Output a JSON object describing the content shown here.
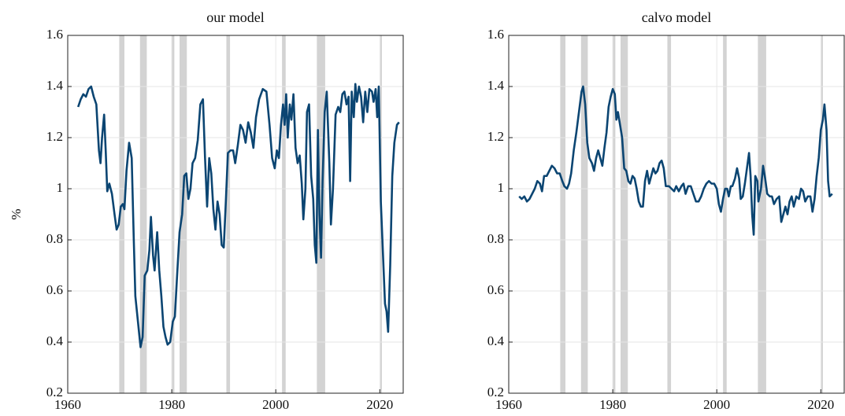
{
  "chart_data": [
    {
      "type": "line",
      "title": "our model",
      "ylabel": "%",
      "color": "#0b4572",
      "grid": true,
      "shade_color": "#d3d3d3",
      "xlim": [
        1960,
        2024.5
      ],
      "xticks": [
        1960,
        1980,
        2000,
        2020
      ],
      "ylim": [
        0.2,
        1.6
      ],
      "yticks": [
        0.2,
        0.4,
        0.6,
        0.8,
        1,
        1.2,
        1.4,
        1.6
      ],
      "shaded": [
        [
          1969.9,
          1970.9
        ],
        [
          1973.9,
          1975.2
        ],
        [
          1980.0,
          1980.5
        ],
        [
          1981.5,
          1982.9
        ],
        [
          1990.5,
          1991.2
        ],
        [
          2001.2,
          2001.9
        ],
        [
          2007.9,
          2009.5
        ],
        [
          2020.1,
          2020.4
        ]
      ],
      "x": [
        1962,
        1962.5,
        1963,
        1963.5,
        1964,
        1964.5,
        1965,
        1965.5,
        1966,
        1966.3,
        1966.6,
        1967,
        1967.3,
        1967.6,
        1968,
        1968.5,
        1969,
        1969.4,
        1969.8,
        1970.2,
        1970.6,
        1970.9,
        1971.3,
        1971.8,
        1972.3,
        1972.7,
        1973,
        1973.5,
        1974,
        1974.4,
        1974.8,
        1975.3,
        1975.7,
        1976,
        1976.4,
        1976.7,
        1977.2,
        1977.6,
        1978,
        1978.4,
        1978.8,
        1979.2,
        1979.7,
        1980.2,
        1980.6,
        1981,
        1981.5,
        1982,
        1982.4,
        1982.8,
        1983.2,
        1983.6,
        1984,
        1984.5,
        1985,
        1985.5,
        1986,
        1986.4,
        1986.8,
        1987.2,
        1987.6,
        1988,
        1988.4,
        1988.8,
        1989.2,
        1989.6,
        1990,
        1990.4,
        1990.8,
        1991.3,
        1991.8,
        1992.2,
        1992.7,
        1993.2,
        1993.7,
        1994.2,
        1994.7,
        1995.2,
        1995.7,
        1996.2,
        1996.8,
        1997.5,
        1998.2,
        1998.8,
        1999.3,
        1999.8,
        2000.2,
        2000.6,
        2001,
        2001.4,
        2001.7,
        2002,
        2002.3,
        2002.7,
        2003,
        2003.4,
        2003.8,
        2004.2,
        2004.6,
        2005,
        2005.3,
        2005.7,
        2006,
        2006.4,
        2006.8,
        2007.2,
        2007.5,
        2007.8,
        2008.1,
        2008.4,
        2008.7,
        2009,
        2009.4,
        2009.8,
        2010.3,
        2010.6,
        2011,
        2011.5,
        2012,
        2012.4,
        2012.8,
        2013.2,
        2013.6,
        2014,
        2014.3,
        2014.6,
        2015,
        2015.3,
        2015.6,
        2016,
        2016.4,
        2016.8,
        2017.2,
        2017.6,
        2018,
        2018.5,
        2018.8,
        2019.2,
        2019.5,
        2019.8,
        2020.2,
        2020.6,
        2021,
        2021.3,
        2021.6,
        2022,
        2022.4,
        2022.8,
        2023.3,
        2023.7
      ],
      "values": [
        1.32,
        1.35,
        1.37,
        1.36,
        1.39,
        1.4,
        1.36,
        1.33,
        1.15,
        1.1,
        1.2,
        1.29,
        1.15,
        0.99,
        1.02,
        0.98,
        0.9,
        0.84,
        0.86,
        0.93,
        0.94,
        0.92,
        1.07,
        1.18,
        1.12,
        0.8,
        0.58,
        0.48,
        0.38,
        0.42,
        0.66,
        0.68,
        0.76,
        0.89,
        0.74,
        0.68,
        0.83,
        0.68,
        0.58,
        0.46,
        0.42,
        0.39,
        0.4,
        0.48,
        0.5,
        0.65,
        0.83,
        0.9,
        1.05,
        1.06,
        0.96,
        1.0,
        1.1,
        1.12,
        1.19,
        1.33,
        1.35,
        1.12,
        0.93,
        1.12,
        1.06,
        0.92,
        0.84,
        0.95,
        0.9,
        0.78,
        0.77,
        0.95,
        1.14,
        1.15,
        1.15,
        1.1,
        1.17,
        1.25,
        1.23,
        1.18,
        1.26,
        1.22,
        1.16,
        1.28,
        1.35,
        1.39,
        1.38,
        1.25,
        1.12,
        1.08,
        1.15,
        1.12,
        1.25,
        1.33,
        1.25,
        1.37,
        1.2,
        1.33,
        1.27,
        1.37,
        1.16,
        1.1,
        1.13,
        1.02,
        0.88,
        1.0,
        1.3,
        1.33,
        1.05,
        0.96,
        0.78,
        0.71,
        1.23,
        0.9,
        0.73,
        1.03,
        1.3,
        1.38,
        1.1,
        0.86,
        1.0,
        1.29,
        1.32,
        1.3,
        1.37,
        1.38,
        1.33,
        1.36,
        1.03,
        1.38,
        1.28,
        1.41,
        1.34,
        1.4,
        1.36,
        1.26,
        1.38,
        1.3,
        1.39,
        1.38,
        1.34,
        1.39,
        1.28,
        1.4,
        0.95,
        0.75,
        0.55,
        0.52,
        0.44,
        0.7,
        1.05,
        1.18,
        1.25,
        1.26
      ]
    },
    {
      "type": "line",
      "title": "calvo model",
      "color": "#0b4572",
      "grid": true,
      "shade_color": "#d3d3d3",
      "xlim": [
        1960,
        2024.5
      ],
      "xticks": [
        1960,
        1980,
        2000,
        2020
      ],
      "ylim": [
        0.2,
        1.6
      ],
      "yticks": [
        0.2,
        0.4,
        0.6,
        0.8,
        1,
        1.2,
        1.4,
        1.6
      ],
      "shaded": [
        [
          1969.9,
          1970.9
        ],
        [
          1973.9,
          1975.2
        ],
        [
          1980.0,
          1980.5
        ],
        [
          1981.5,
          1982.9
        ],
        [
          1990.5,
          1991.2
        ],
        [
          2001.2,
          2001.9
        ],
        [
          2007.9,
          2009.5
        ],
        [
          2020.1,
          2020.4
        ]
      ],
      "x": [
        1962,
        1962.5,
        1963,
        1963.5,
        1964,
        1964.5,
        1965,
        1965.5,
        1966,
        1966.4,
        1966.8,
        1967.3,
        1967.8,
        1968.3,
        1968.8,
        1969.3,
        1969.8,
        1970.3,
        1970.7,
        1971.2,
        1971.6,
        1972,
        1972.5,
        1973,
        1973.5,
        1974,
        1974.3,
        1974.7,
        1975.1,
        1975.5,
        1976,
        1976.4,
        1976.8,
        1977.2,
        1977.6,
        1978,
        1978.4,
        1978.8,
        1979.2,
        1979.6,
        1980,
        1980.4,
        1980.7,
        1981,
        1981.4,
        1981.8,
        1982.2,
        1982.6,
        1983,
        1983.4,
        1983.8,
        1984.2,
        1984.6,
        1985,
        1985.4,
        1985.8,
        1986.2,
        1986.6,
        1987,
        1987.4,
        1987.8,
        1988.2,
        1988.6,
        1989,
        1989.4,
        1989.8,
        1990.2,
        1990.8,
        1991.3,
        1991.8,
        1992.2,
        1992.7,
        1993.2,
        1993.6,
        1994,
        1994.5,
        1995,
        1995.5,
        1996,
        1996.5,
        1997,
        1997.5,
        1998,
        1998.5,
        1999,
        1999.5,
        2000,
        2000.4,
        2000.8,
        2001.2,
        2001.6,
        2002,
        2002.3,
        2002.7,
        2003,
        2003.5,
        2003.9,
        2004.3,
        2004.6,
        2005,
        2005.4,
        2005.8,
        2006.2,
        2006.5,
        2006.8,
        2007.1,
        2007.4,
        2007.8,
        2008,
        2008.5,
        2008.9,
        2009.3,
        2009.7,
        2010.2,
        2010.6,
        2011,
        2011.5,
        2012,
        2012.4,
        2012.8,
        2013.2,
        2013.6,
        2014,
        2014.4,
        2014.8,
        2015.3,
        2015.8,
        2016.2,
        2016.6,
        2017,
        2017.5,
        2018,
        2018.4,
        2018.8,
        2019.2,
        2019.6,
        2020,
        2020.4,
        2020.7,
        2021.1,
        2021.4,
        2021.7,
        2022.2
      ],
      "values": [
        0.97,
        0.96,
        0.97,
        0.95,
        0.96,
        0.98,
        1.0,
        1.03,
        1.02,
        0.99,
        1.05,
        1.05,
        1.07,
        1.09,
        1.08,
        1.06,
        1.06,
        1.03,
        1.01,
        1.0,
        1.02,
        1.06,
        1.15,
        1.22,
        1.3,
        1.38,
        1.4,
        1.33,
        1.18,
        1.12,
        1.1,
        1.07,
        1.12,
        1.15,
        1.12,
        1.09,
        1.16,
        1.22,
        1.32,
        1.36,
        1.39,
        1.37,
        1.27,
        1.3,
        1.25,
        1.2,
        1.08,
        1.07,
        1.03,
        1.02,
        1.05,
        1.04,
        1.0,
        0.95,
        0.93,
        0.93,
        1.03,
        1.07,
        1.02,
        1.05,
        1.08,
        1.06,
        1.07,
        1.1,
        1.11,
        1.08,
        1.01,
        1.01,
        1.0,
        0.99,
        1.01,
        0.99,
        1.01,
        1.02,
        0.98,
        1.01,
        1.01,
        0.98,
        0.95,
        0.95,
        0.97,
        1.0,
        1.02,
        1.03,
        1.02,
        1.02,
        1.0,
        0.94,
        0.91,
        0.96,
        1.0,
        1.0,
        0.97,
        1.01,
        1.01,
        1.04,
        1.08,
        1.04,
        0.96,
        0.97,
        1.02,
        1.08,
        1.14,
        1.05,
        0.9,
        0.82,
        1.05,
        1.03,
        0.95,
        1.0,
        1.09,
        1.04,
        0.98,
        0.97,
        0.97,
        0.94,
        0.96,
        0.97,
        0.87,
        0.9,
        0.93,
        0.9,
        0.95,
        0.97,
        0.93,
        0.97,
        0.96,
        1.0,
        0.99,
        0.95,
        0.97,
        0.97,
        0.91,
        0.96,
        1.05,
        1.12,
        1.23,
        1.27,
        1.33,
        1.23,
        1.03,
        0.97,
        0.98
      ]
    }
  ]
}
